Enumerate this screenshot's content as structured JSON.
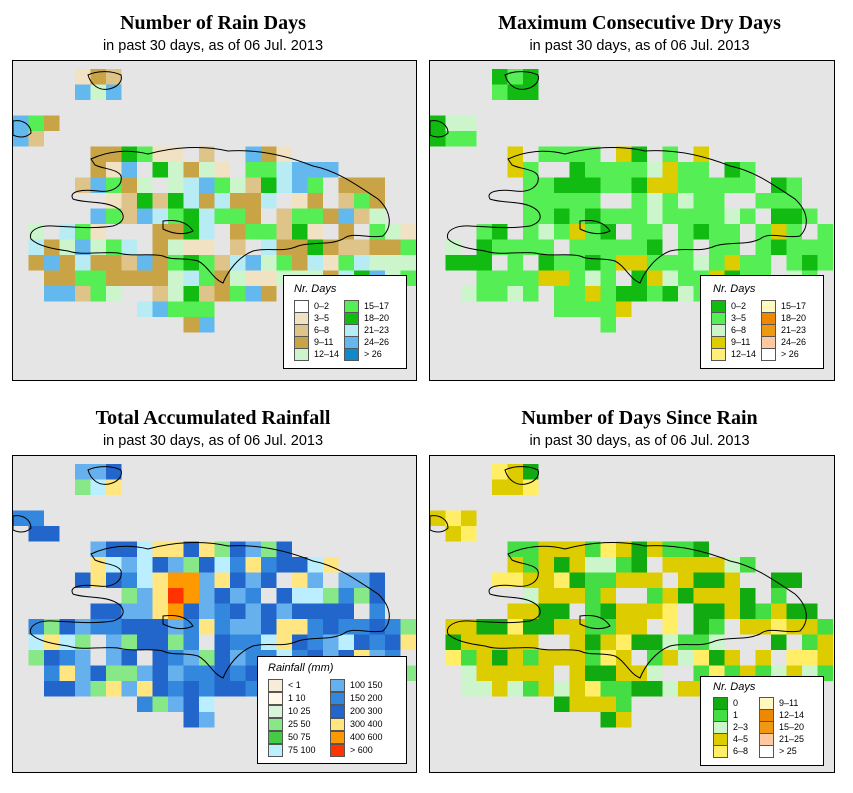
{
  "panels": [
    {
      "id": "rain-days",
      "title": "Number of Rain Days",
      "subtitle": "in past 30 days, as of  06 Jul. 2013",
      "legend": {
        "title": "Nr. Days",
        "items": [
          {
            "label": "0–2",
            "color": "#ffffff"
          },
          {
            "label": "3–5",
            "color": "#f2e2c4"
          },
          {
            "label": "6–8",
            "color": "#dfc48a"
          },
          {
            "label": "9–11",
            "color": "#c8a446"
          },
          {
            "label": "12–14",
            "color": "#ccf5cc"
          },
          {
            "label": "15–17",
            "color": "#55ee55"
          },
          {
            "label": "18–20",
            "color": "#11bb11"
          },
          {
            "label": "21–23",
            "color": "#b8ecf5"
          },
          {
            "label": "24–26",
            "color": "#63b8ee"
          },
          {
            "label": "> 26",
            "color": "#1188cc"
          }
        ]
      }
    },
    {
      "id": "max-dry-days",
      "title": "Maximum Consecutive Dry Days",
      "subtitle": "in past 30 days, as of  06 Jul. 2013",
      "legend": {
        "title": "Nr. Days",
        "items": [
          {
            "label": "0–2",
            "color": "#11bb11"
          },
          {
            "label": "3–5",
            "color": "#55ee55"
          },
          {
            "label": "6–8",
            "color": "#ccf5cc"
          },
          {
            "label": "9–11",
            "color": "#ddcc00"
          },
          {
            "label": "12–14",
            "color": "#ffee77"
          },
          {
            "label": "15–17",
            "color": "#fff8c0"
          },
          {
            "label": "18–20",
            "color": "#ee8800"
          },
          {
            "label": "21–23",
            "color": "#ee9911"
          },
          {
            "label": "24–26",
            "color": "#ffc8a0"
          },
          {
            "label": "> 26",
            "color": "#ffffff"
          }
        ]
      }
    },
    {
      "id": "total-rainfall",
      "title": "Total Accumulated Rainfall",
      "subtitle": "in past 30 days, as of  06 Jul. 2013",
      "legend": {
        "title": "Rainfall (mm)",
        "items": [
          {
            "label": "< 1",
            "color": "#f8ecd8"
          },
          {
            "label": "1    10",
            "color": "#fff8e8"
          },
          {
            "label": "10    25",
            "color": "#d8f5d8"
          },
          {
            "label": "25    50",
            "color": "#88e888"
          },
          {
            "label": "50    75",
            "color": "#44cc44"
          },
          {
            "label": "75  100",
            "color": "#bbeeff"
          },
          {
            "label": "100  150",
            "color": "#66b0ee"
          },
          {
            "label": "150  200",
            "color": "#3388dd"
          },
          {
            "label": "200  300",
            "color": "#2266cc"
          },
          {
            "label": "300  400",
            "color": "#ffe680"
          },
          {
            "label": "400  600",
            "color": "#ff9900"
          },
          {
            "label": "> 600",
            "color": "#ff3300"
          }
        ]
      }
    },
    {
      "id": "days-since-rain",
      "title": "Number of Days Since Rain",
      "subtitle": "in past 30 days, as of  06 Jul. 2013",
      "legend": {
        "title": "Nr. Days",
        "items": [
          {
            "label": "0",
            "color": "#11aa11"
          },
          {
            "label": "1",
            "color": "#44dd44"
          },
          {
            "label": "2–3",
            "color": "#ccf5cc"
          },
          {
            "label": "4–5",
            "color": "#ddcc00"
          },
          {
            "label": "6–8",
            "color": "#ffee66"
          },
          {
            "label": "9–11",
            "color": "#fff8c0"
          },
          {
            "label": "12–14",
            "color": "#ee8800"
          },
          {
            "label": "15–20",
            "color": "#ee9911"
          },
          {
            "label": "21–25",
            "color": "#ffc8a0"
          },
          {
            "label": "> 25",
            "color": "#ffffff"
          }
        ]
      }
    }
  ]
}
